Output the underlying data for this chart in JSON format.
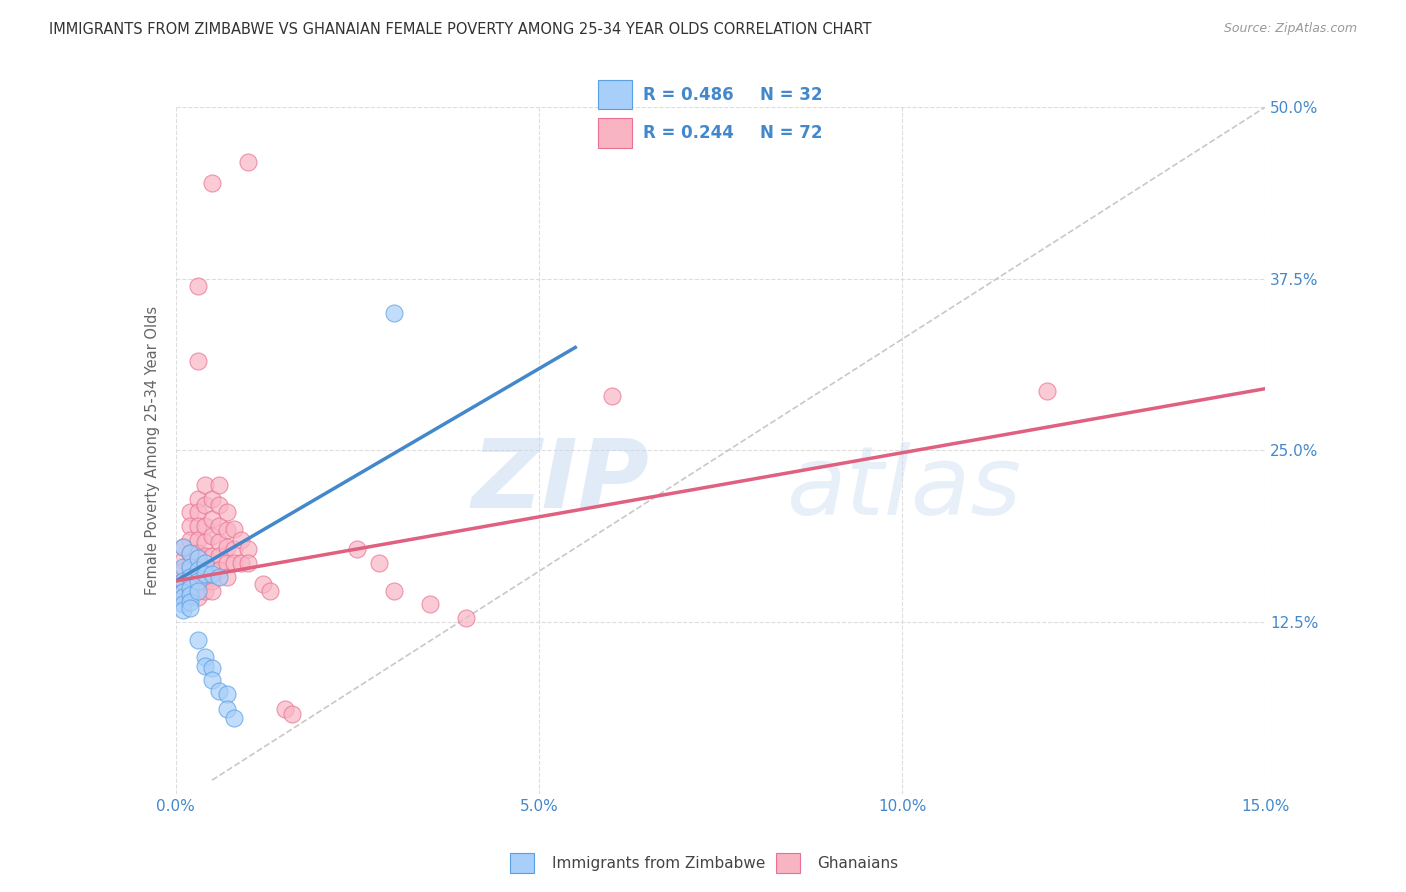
{
  "title": "IMMIGRANTS FROM ZIMBABWE VS GHANAIAN FEMALE POVERTY AMONG 25-34 YEAR OLDS CORRELATION CHART",
  "source": "Source: ZipAtlas.com",
  "ylabel": "Female Poverty Among 25-34 Year Olds",
  "x_min": 0.0,
  "x_max": 0.15,
  "y_min": 0.0,
  "y_max": 0.5,
  "x_ticks": [
    0.0,
    0.05,
    0.1,
    0.15
  ],
  "x_tick_labels": [
    "0.0%",
    "5.0%",
    "10.0%",
    "15.0%"
  ],
  "y_ticks": [
    0.0,
    0.125,
    0.25,
    0.375,
    0.5
  ],
  "y_tick_labels": [
    "",
    "12.5%",
    "25.0%",
    "37.5%",
    "50.0%"
  ],
  "legend_R1": "R = 0.486",
  "legend_N1": "N = 32",
  "legend_R2": "R = 0.244",
  "legend_N2": "N = 72",
  "color_zimbabwe": "#A8CEFA",
  "color_ghana": "#F9B4C4",
  "color_zimbabwe_dark": "#5A9FE0",
  "color_ghana_dark": "#E87090",
  "trendline_zimbabwe_color": "#4488CC",
  "trendline_ghana_color": "#E06080",
  "dashed_line_color": "#BBBBBB",
  "watermark_zip": "ZIP",
  "watermark_atlas": "atlas",
  "background_color": "#FFFFFF",
  "grid_color": "#DDDDDD",
  "title_color": "#333333",
  "axis_label_color": "#4488CC",
  "zim_trendline": [
    0.0,
    0.155,
    0.055,
    0.325
  ],
  "gha_trendline": [
    0.0,
    0.155,
    0.15,
    0.295
  ],
  "diag_line": [
    0.005,
    0.01,
    0.15,
    0.5
  ],
  "zimbabwe_scatter": [
    [
      0.001,
      0.18
    ],
    [
      0.001,
      0.165
    ],
    [
      0.001,
      0.155
    ],
    [
      0.001,
      0.147
    ],
    [
      0.001,
      0.143
    ],
    [
      0.001,
      0.138
    ],
    [
      0.001,
      0.134
    ],
    [
      0.002,
      0.175
    ],
    [
      0.002,
      0.165
    ],
    [
      0.002,
      0.158
    ],
    [
      0.002,
      0.15
    ],
    [
      0.002,
      0.145
    ],
    [
      0.002,
      0.14
    ],
    [
      0.002,
      0.135
    ],
    [
      0.003,
      0.172
    ],
    [
      0.003,
      0.163
    ],
    [
      0.003,
      0.155
    ],
    [
      0.003,
      0.148
    ],
    [
      0.003,
      0.112
    ],
    [
      0.004,
      0.168
    ],
    [
      0.004,
      0.16
    ],
    [
      0.004,
      0.1
    ],
    [
      0.004,
      0.093
    ],
    [
      0.005,
      0.16
    ],
    [
      0.005,
      0.092
    ],
    [
      0.005,
      0.083
    ],
    [
      0.006,
      0.158
    ],
    [
      0.006,
      0.075
    ],
    [
      0.007,
      0.073
    ],
    [
      0.007,
      0.062
    ],
    [
      0.008,
      0.055
    ],
    [
      0.03,
      0.35
    ]
  ],
  "ghana_scatter": [
    [
      0.001,
      0.18
    ],
    [
      0.001,
      0.17
    ],
    [
      0.001,
      0.162
    ],
    [
      0.001,
      0.155
    ],
    [
      0.001,
      0.148
    ],
    [
      0.001,
      0.143
    ],
    [
      0.002,
      0.205
    ],
    [
      0.002,
      0.195
    ],
    [
      0.002,
      0.185
    ],
    [
      0.002,
      0.175
    ],
    [
      0.002,
      0.168
    ],
    [
      0.002,
      0.162
    ],
    [
      0.002,
      0.155
    ],
    [
      0.002,
      0.148
    ],
    [
      0.002,
      0.143
    ],
    [
      0.003,
      0.37
    ],
    [
      0.003,
      0.315
    ],
    [
      0.003,
      0.215
    ],
    [
      0.003,
      0.205
    ],
    [
      0.003,
      0.195
    ],
    [
      0.003,
      0.185
    ],
    [
      0.003,
      0.175
    ],
    [
      0.003,
      0.165
    ],
    [
      0.003,
      0.158
    ],
    [
      0.003,
      0.15
    ],
    [
      0.003,
      0.143
    ],
    [
      0.004,
      0.225
    ],
    [
      0.004,
      0.21
    ],
    [
      0.004,
      0.195
    ],
    [
      0.004,
      0.183
    ],
    [
      0.004,
      0.173
    ],
    [
      0.004,
      0.163
    ],
    [
      0.004,
      0.155
    ],
    [
      0.004,
      0.148
    ],
    [
      0.005,
      0.445
    ],
    [
      0.005,
      0.215
    ],
    [
      0.005,
      0.2
    ],
    [
      0.005,
      0.188
    ],
    [
      0.005,
      0.173
    ],
    [
      0.005,
      0.163
    ],
    [
      0.005,
      0.155
    ],
    [
      0.005,
      0.148
    ],
    [
      0.006,
      0.225
    ],
    [
      0.006,
      0.21
    ],
    [
      0.006,
      0.195
    ],
    [
      0.006,
      0.183
    ],
    [
      0.006,
      0.173
    ],
    [
      0.006,
      0.163
    ],
    [
      0.007,
      0.205
    ],
    [
      0.007,
      0.192
    ],
    [
      0.007,
      0.18
    ],
    [
      0.007,
      0.168
    ],
    [
      0.007,
      0.158
    ],
    [
      0.008,
      0.193
    ],
    [
      0.008,
      0.178
    ],
    [
      0.008,
      0.168
    ],
    [
      0.009,
      0.185
    ],
    [
      0.009,
      0.168
    ],
    [
      0.01,
      0.46
    ],
    [
      0.01,
      0.178
    ],
    [
      0.01,
      0.168
    ],
    [
      0.012,
      0.153
    ],
    [
      0.013,
      0.148
    ],
    [
      0.015,
      0.062
    ],
    [
      0.016,
      0.058
    ],
    [
      0.025,
      0.178
    ],
    [
      0.028,
      0.168
    ],
    [
      0.03,
      0.148
    ],
    [
      0.035,
      0.138
    ],
    [
      0.04,
      0.128
    ],
    [
      0.06,
      0.29
    ],
    [
      0.12,
      0.293
    ]
  ]
}
